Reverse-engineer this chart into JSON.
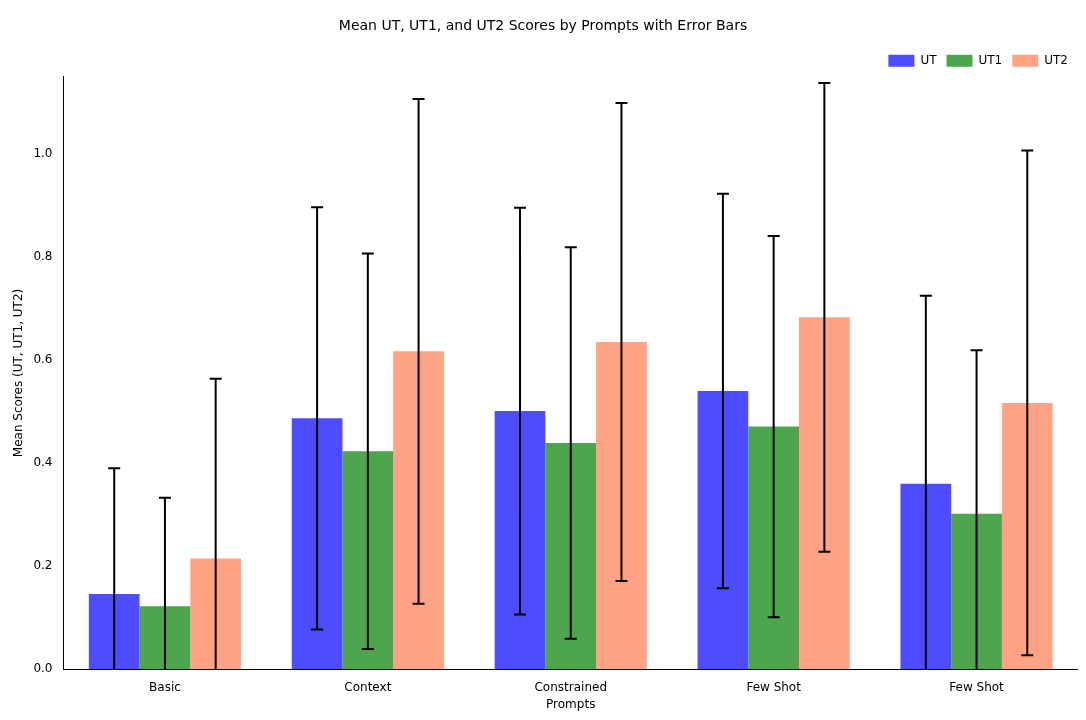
{
  "chart_data": {
    "type": "bar",
    "title": "Mean UT, UT1, and UT2 Scores by Prompts with Error Bars",
    "xlabel": "Prompts",
    "ylabel": "Mean Scores (UT, UT1, UT2)",
    "categories": [
      "Basic",
      "Context",
      "Constrained",
      "Few Shot",
      "Few Shot"
    ],
    "series": [
      {
        "name": "UT",
        "color": "#4d4dff",
        "values": [
          0.146,
          0.487,
          0.501,
          0.54,
          0.36
        ],
        "errors": [
          0.244,
          0.41,
          0.395,
          0.383,
          0.365
        ]
      },
      {
        "name": "UT1",
        "color": "#4da64d",
        "values": [
          0.122,
          0.423,
          0.439,
          0.471,
          0.302
        ],
        "errors": [
          0.211,
          0.384,
          0.38,
          0.37,
          0.317
        ]
      },
      {
        "name": "UT2",
        "color": "#ffa384",
        "values": [
          0.215,
          0.617,
          0.635,
          0.683,
          0.517
        ],
        "errors": [
          0.349,
          0.49,
          0.464,
          0.455,
          0.49
        ]
      }
    ],
    "ylim": [
      0,
      1.15
    ],
    "yticks": [
      {
        "value": 0,
        "label": "0.0"
      },
      {
        "value": 0.2,
        "label": "0.2"
      },
      {
        "value": 0.4,
        "label": "0.4"
      },
      {
        "value": 0.6,
        "label": "0.6"
      },
      {
        "value": 0.8,
        "label": "0.8"
      },
      {
        "value": 1,
        "label": "1.0"
      }
    ],
    "grid": false,
    "legend": "top right"
  }
}
